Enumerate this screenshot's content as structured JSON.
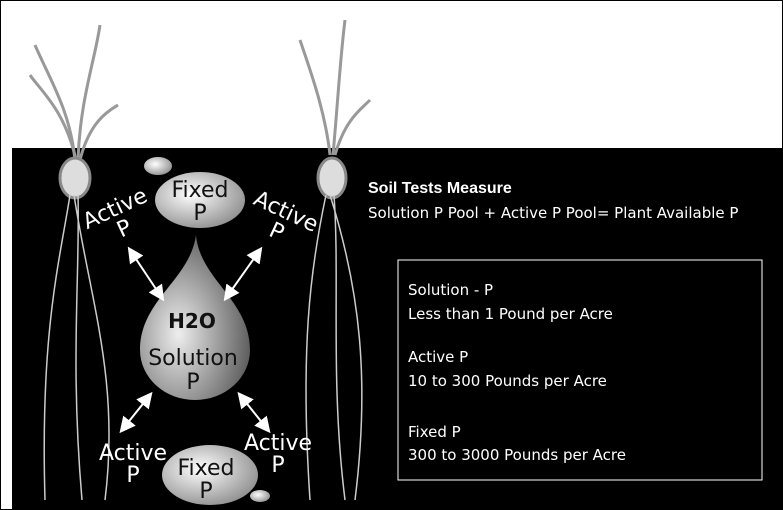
{
  "soil_tests": {
    "title": "Soil Tests Measure",
    "formula": "Solution P Pool + Active P Pool= Plant Available P"
  },
  "pools": [
    {
      "name": "Solution - P",
      "amount": "Less than 1 Pound per Acre"
    },
    {
      "name": "Active P",
      "amount": "10 to 300 Pounds per Acre"
    },
    {
      "name": "Fixed P",
      "amount": "300 to 3000 Pounds per Acre"
    }
  ],
  "diagram": {
    "fixed_top": [
      "Fixed",
      "P"
    ],
    "active_top_left": [
      "Active",
      "P"
    ],
    "active_top_right": [
      "Active",
      "P"
    ],
    "water": "H2O",
    "solution": [
      "Solution",
      "P"
    ],
    "active_bottom_left": [
      "Active",
      "P"
    ],
    "active_bottom_right": [
      "Active",
      "P"
    ],
    "fixed_bottom": [
      "Fixed",
      "P"
    ]
  }
}
